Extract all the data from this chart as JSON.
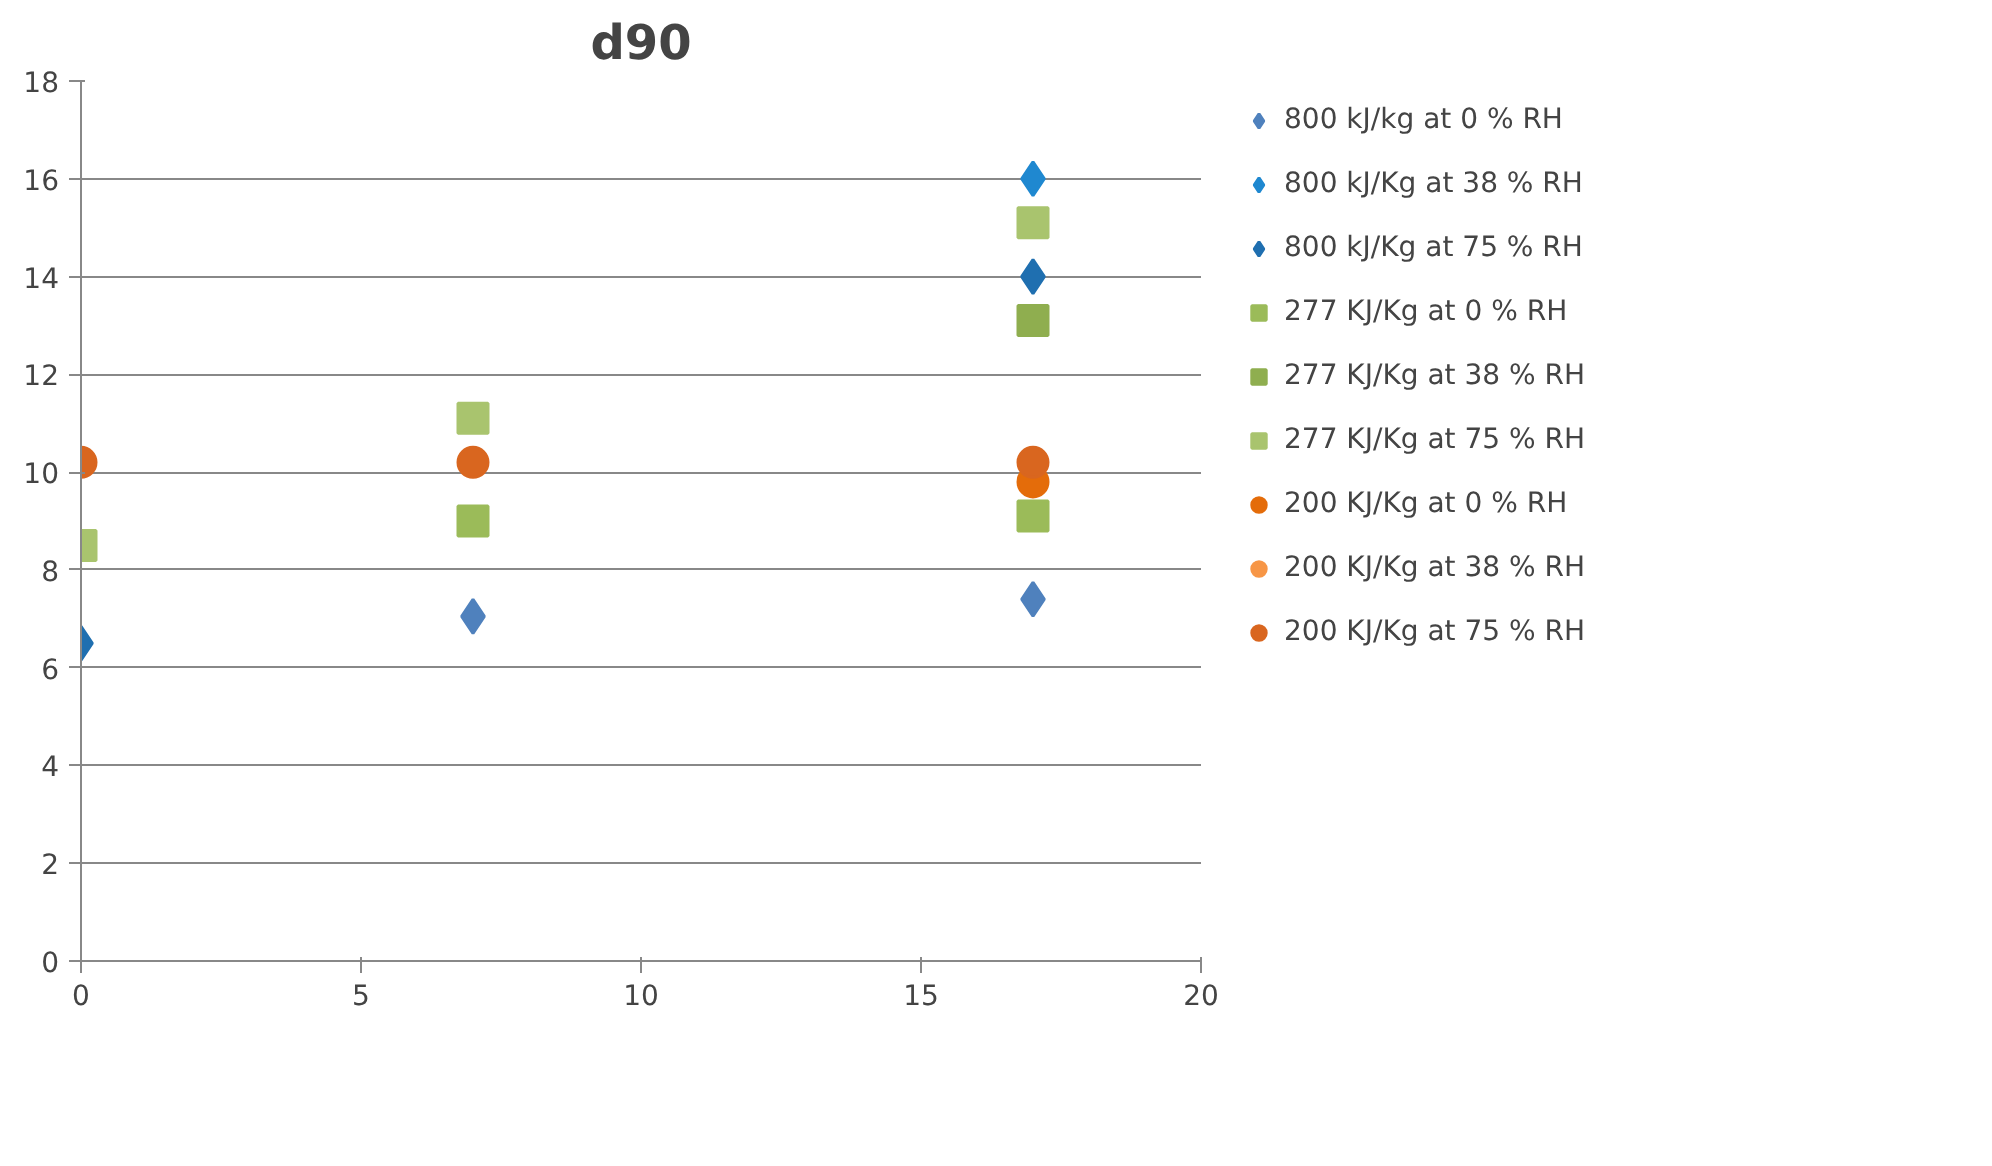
{
  "chart_data": {
    "type": "scatter",
    "title": "d90",
    "x": [
      0,
      7,
      17
    ],
    "series": [
      {
        "name": "800 kJ/kg at 0 % RH",
        "color": "#4f81bd",
        "marker": "diamond",
        "values": [
          null,
          7.05,
          7.4
        ]
      },
      {
        "name": "800 kJ/Kg at 38 % RH",
        "color": "#1f88d0",
        "marker": "diamond",
        "values": [
          null,
          null,
          16
        ]
      },
      {
        "name": "800 kJ/Kg at 75 % RH",
        "color": "#1f6fb0",
        "marker": "diamond",
        "values": [
          6.5,
          null,
          14
        ]
      },
      {
        "name": "277 KJ/Kg at 0 % RH",
        "color": "#9bbb59",
        "marker": "square",
        "values": [
          null,
          9,
          9.1
        ]
      },
      {
        "name": "277 KJ/Kg at 38 % RH",
        "color": "#8fae4f",
        "marker": "square",
        "values": [
          null,
          null,
          13.1
        ]
      },
      {
        "name": "277 KJ/Kg at 75 % RH",
        "color": "#a9c46e",
        "marker": "square",
        "values": [
          8.5,
          11.1,
          15.1
        ]
      },
      {
        "name": "200 KJ/Kg at 0 % RH",
        "color": "#e46c0a",
        "marker": "circle",
        "values": [
          null,
          null,
          9.8
        ]
      },
      {
        "name": "200 KJ/Kg at 38 % RH",
        "color": "#f79646",
        "marker": "circle",
        "values": [
          null,
          null,
          null
        ]
      },
      {
        "name": "200 KJ/Kg at 75 % RH",
        "color": "#d9661f",
        "marker": "circle",
        "values": [
          10.2,
          10.2,
          10.2
        ]
      }
    ],
    "xlim": [
      0,
      20
    ],
    "xticks": [
      0,
      5,
      10,
      15,
      20
    ],
    "ylim": [
      0,
      18
    ],
    "yticks": [
      0,
      2,
      4,
      6,
      8,
      10,
      12,
      14,
      16,
      18
    ],
    "grid": "y",
    "legend": "right"
  }
}
